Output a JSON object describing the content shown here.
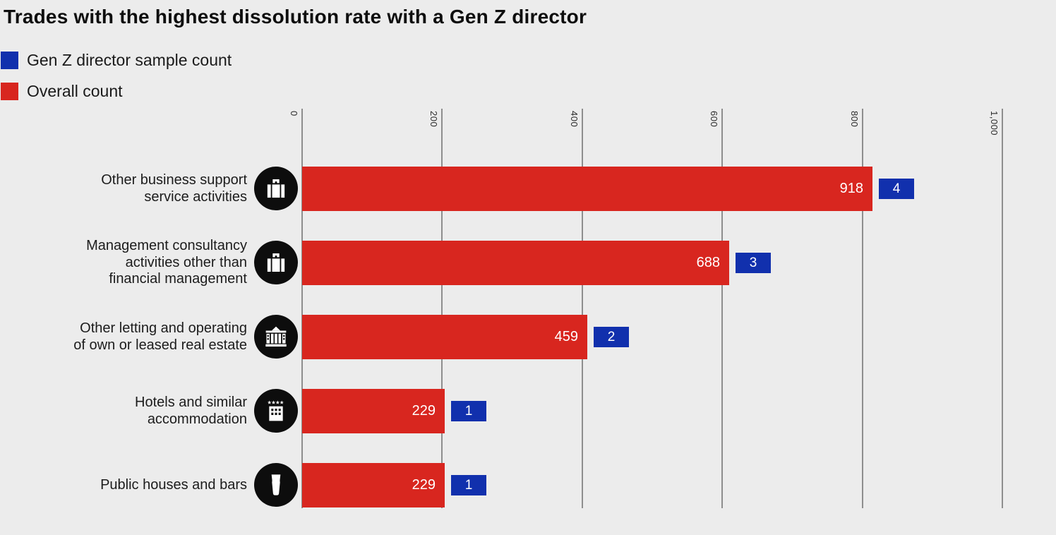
{
  "title": "Trades with the highest dissolution rate with a Gen Z director",
  "legend": [
    {
      "label": "Gen Z director sample count",
      "color": "#1130ad"
    },
    {
      "label": "Overall count",
      "color": "#d8261f"
    }
  ],
  "colors": {
    "genz_blue": "#1130ad",
    "overall_red": "#d8261f",
    "background": "#ececec",
    "icon_circle": "#0d0d0d",
    "gridline": "#8e8e8e",
    "bar_value_text": "#ffffff"
  },
  "chart_data": {
    "type": "bar",
    "orientation": "horizontal",
    "title": "Trades with the highest dissolution rate with a Gen Z director",
    "categories": [
      "Other business support service activities",
      "Management consultancy activities other than financial management",
      "Other letting and operating of own or leased real estate",
      "Hotels and similar accommodation",
      "Public houses and bars"
    ],
    "category_lines": [
      [
        "Other business support",
        "service activities"
      ],
      [
        "Management consultancy",
        "activities other than",
        "financial management"
      ],
      [
        "Other letting and operating",
        "of own or leased real estate"
      ],
      [
        "Hotels and similar",
        "accommodation"
      ],
      [
        "Public houses and bars"
      ]
    ],
    "icons": [
      "briefcase-icon",
      "briefcase-icon",
      "building-icon",
      "hotel-icon",
      "pint-glass-icon"
    ],
    "series": [
      {
        "name": "Overall count",
        "color": "#d8261f",
        "values": [
          918,
          688,
          459,
          229,
          229
        ],
        "labels": [
          "918",
          "688",
          "459",
          "229",
          "229"
        ]
      },
      {
        "name": "Gen Z director sample count",
        "color": "#1130ad",
        "values": [
          4,
          3,
          2,
          1,
          1
        ],
        "labels": [
          "4",
          "3",
          "2",
          "1",
          "1"
        ]
      }
    ],
    "x_ticks": [
      "0",
      "200",
      "400",
      "600",
      "800",
      "1,000"
    ],
    "x_tick_values": [
      0,
      200,
      400,
      600,
      800,
      1000
    ],
    "xlim": [
      0,
      1000
    ],
    "xlabel": "",
    "ylabel": "",
    "grid": true,
    "legend_position": "top-left"
  }
}
